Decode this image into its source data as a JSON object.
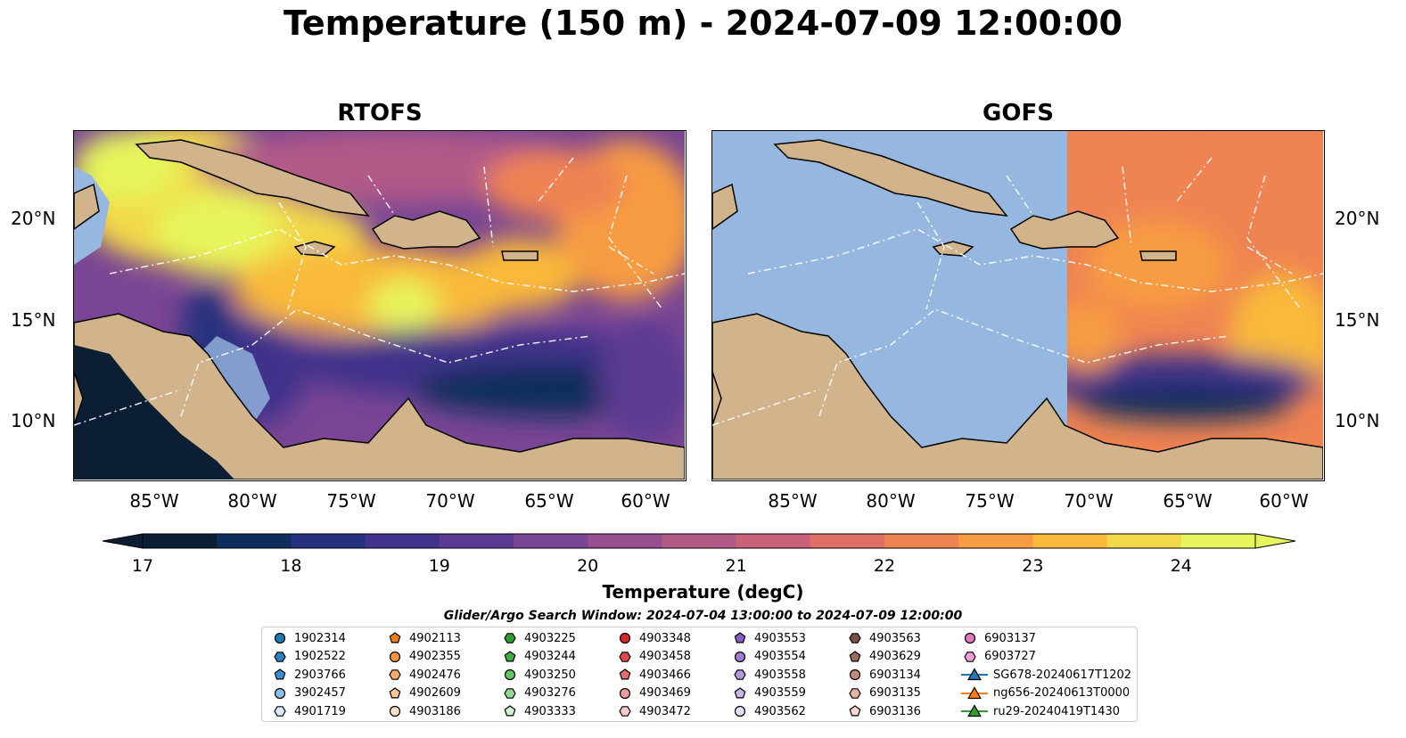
{
  "title": "Temperature (150 m) - 2024-07-09 12:00:00",
  "panels": [
    {
      "title": "RTOFS"
    },
    {
      "title": "GOFS"
    }
  ],
  "lat_labels": [
    "20°N",
    "15°N",
    "10°N"
  ],
  "lon_labels": [
    "85°W",
    "80°W",
    "75°W",
    "70°W",
    "65°W",
    "60°W"
  ],
  "colorbar": {
    "label": "Temperature (degC)",
    "ticks": [
      "17",
      "18",
      "19",
      "20",
      "21",
      "22",
      "23",
      "24"
    ],
    "min": 17,
    "max": 24.5,
    "colors": [
      "#0c1e34",
      "#0d2d5c",
      "#25317e",
      "#41338b",
      "#5b3a93",
      "#7a4594",
      "#974f8f",
      "#b25a87",
      "#c9617b",
      "#e06e66",
      "#ef8352",
      "#f79c43",
      "#f9b93b",
      "#f2d84a",
      "#e6f55c"
    ]
  },
  "search_window": "Glider/Argo Search Window: 2024-07-04 13:00:00 to 2024-07-09 12:00:00",
  "legend": {
    "columns": [
      [
        {
          "label": "1902314",
          "marker": "circle",
          "color": "#1f77b4"
        },
        {
          "label": "1902522",
          "marker": "hexagon",
          "color": "#2a83bf"
        },
        {
          "label": "2903766",
          "marker": "pentagon",
          "color": "#3b8fd0"
        },
        {
          "label": "3902457",
          "marker": "circle",
          "color": "#8bbde6"
        },
        {
          "label": "4901719",
          "marker": "hexagon",
          "color": "#dbeaf8"
        }
      ],
      [
        {
          "label": "4902113",
          "marker": "pentagon",
          "color": "#f07c12"
        },
        {
          "label": "4902355",
          "marker": "circle",
          "color": "#f5943b"
        },
        {
          "label": "4902476",
          "marker": "hexagon",
          "color": "#f8ac68"
        },
        {
          "label": "4902609",
          "marker": "pentagon",
          "color": "#fbc497"
        },
        {
          "label": "4903186",
          "marker": "circle",
          "color": "#fde0c6"
        }
      ],
      [
        {
          "label": "4903225",
          "marker": "hexagon",
          "color": "#2ca02c"
        },
        {
          "label": "4903244",
          "marker": "pentagon",
          "color": "#3fad3f"
        },
        {
          "label": "4903250",
          "marker": "circle",
          "color": "#62c462"
        },
        {
          "label": "4903276",
          "marker": "hexagon",
          "color": "#93d993"
        },
        {
          "label": "4903333",
          "marker": "pentagon",
          "color": "#d2f2cf"
        }
      ],
      [
        {
          "label": "4903348",
          "marker": "circle",
          "color": "#d62728"
        },
        {
          "label": "4903458",
          "marker": "hexagon",
          "color": "#de4a4b"
        },
        {
          "label": "4903466",
          "marker": "pentagon",
          "color": "#e56d6e"
        },
        {
          "label": "4903469",
          "marker": "circle",
          "color": "#ee9a9a"
        },
        {
          "label": "4903472",
          "marker": "hexagon",
          "color": "#f7caca"
        }
      ],
      [
        {
          "label": "4903553",
          "marker": "pentagon",
          "color": "#8a5bc0"
        },
        {
          "label": "4903554",
          "marker": "circle",
          "color": "#a07bd0"
        },
        {
          "label": "4903558",
          "marker": "hexagon",
          "color": "#b597de"
        },
        {
          "label": "4903559",
          "marker": "pentagon",
          "color": "#cdb4ec"
        },
        {
          "label": "4903562",
          "marker": "circle",
          "color": "#e8dcf8"
        }
      ],
      [
        {
          "label": "4903563",
          "marker": "hexagon",
          "color": "#7d4f45"
        },
        {
          "label": "4903629",
          "marker": "pentagon",
          "color": "#9a6b5f"
        },
        {
          "label": "6903134",
          "marker": "circle",
          "color": "#c38a7c"
        },
        {
          "label": "6903135",
          "marker": "hexagon",
          "color": "#e6b4a6"
        },
        {
          "label": "6903136",
          "marker": "pentagon",
          "color": "#fadad0"
        }
      ],
      [
        {
          "label": "6903137",
          "marker": "circle",
          "color": "#e377c2"
        },
        {
          "label": "6903727",
          "marker": "hexagon",
          "color": "#ee9bd6"
        },
        {
          "label": "SG678-20240617T1202",
          "marker": "triangle",
          "color": "#1f77b4",
          "line": true
        },
        {
          "label": "ng656-20240613T0000",
          "marker": "triangle",
          "color": "#ff7f0e",
          "line": true
        },
        {
          "label": "ru29-20240419T1430",
          "marker": "triangle",
          "color": "#2ca02c",
          "line": true
        }
      ]
    ]
  }
}
